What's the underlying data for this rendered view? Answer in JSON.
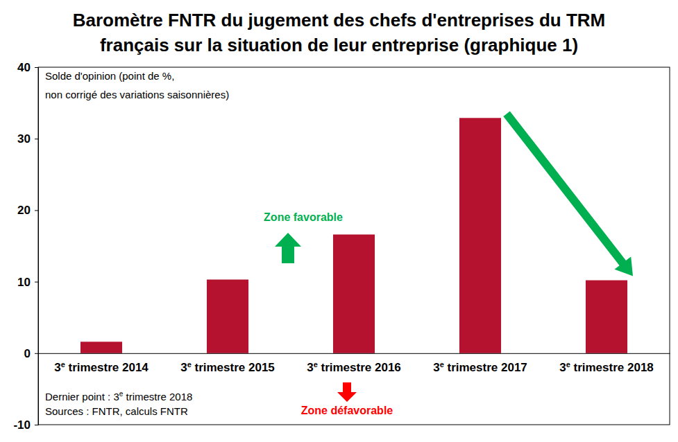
{
  "chart_data": {
    "type": "bar",
    "title": [
      "Baromètre FNTR du jugement des chefs d'entreprises du TRM",
      "français sur la situation de leur entreprise (graphique 1)"
    ],
    "categories": [
      "3e trimestre 2014",
      "3e trimestre 2015",
      "3e trimestre 2016",
      "3e trimestre 2017",
      "3e trimestre 2018"
    ],
    "values": [
      1.6,
      10.3,
      16.6,
      32.9,
      10.2
    ],
    "color": "#b5122f",
    "ylim": [
      -10,
      40
    ],
    "yticks": [
      -10,
      0,
      10,
      20,
      30,
      40
    ],
    "grid": false,
    "y_note": [
      "Solde d'opinion (point de %,",
      "non corrigé des variations saisonnières)"
    ],
    "zone_favorable": "Zone favorable",
    "zone_defavorable": "Zone défavorable",
    "footnotes": [
      "Dernier point : 3e trimestre 2018",
      "Sources : FNTR, calculs FNTR"
    ]
  }
}
